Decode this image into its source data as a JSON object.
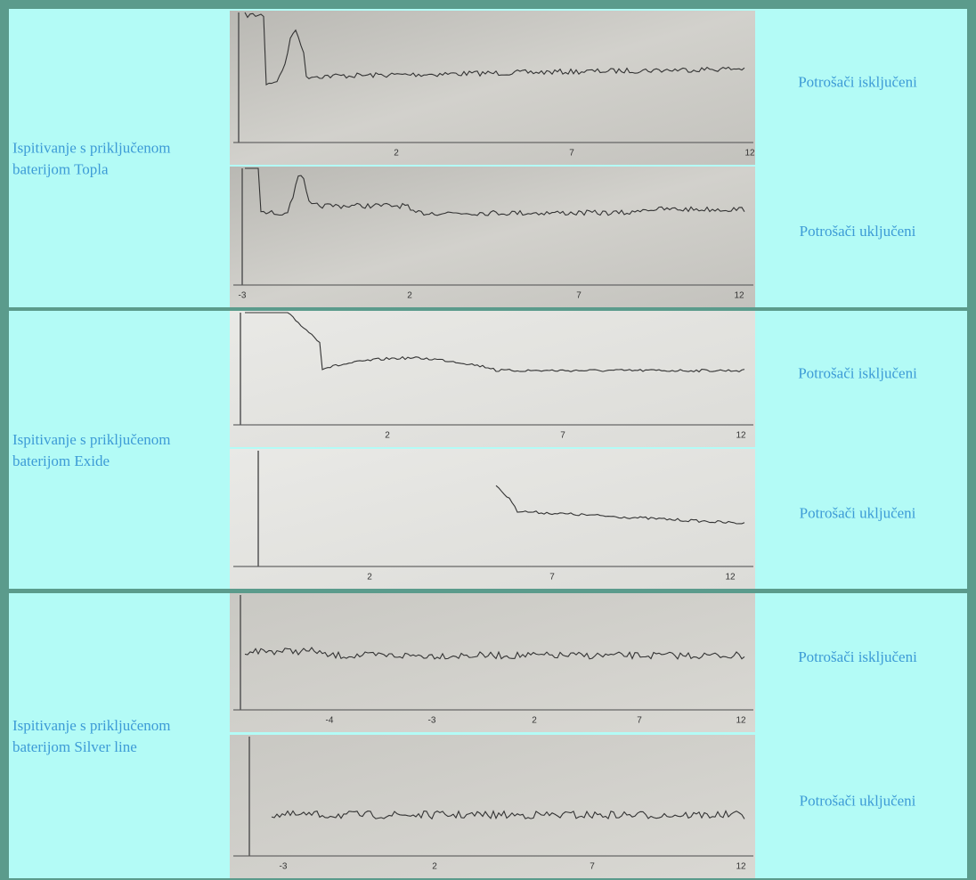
{
  "table": {
    "rows": [
      {
        "label": [
          "Ispitivanje s priključenom",
          "baterijom Topla"
        ],
        "panels": [
          {
            "status": "Potrošači isključeni",
            "ticks": [
              "2",
              "7",
              "12"
            ]
          },
          {
            "status": "Potrošači uključeni",
            "ticks": [
              "-3",
              "2",
              "7",
              "12"
            ]
          }
        ]
      },
      {
        "label": [
          "Ispitivanje s priključenom",
          "baterijom Exide"
        ],
        "panels": [
          {
            "status": "Potrošači isključeni",
            "ticks": [
              "2",
              "7",
              "12"
            ]
          },
          {
            "status": "Potrošači uključeni",
            "ticks": [
              "2",
              "7",
              "12"
            ]
          }
        ]
      },
      {
        "label": [
          "Ispitivanje s priključenom",
          "baterijom Silver line"
        ],
        "panels": [
          {
            "status": "Potrošači isključeni",
            "ticks": [
              "-4",
              "-3",
              "2",
              "7",
              "12"
            ]
          },
          {
            "status": "Potrošači uključeni",
            "ticks": [
              "-3",
              "2",
              "7",
              "12"
            ]
          }
        ]
      }
    ]
  }
}
